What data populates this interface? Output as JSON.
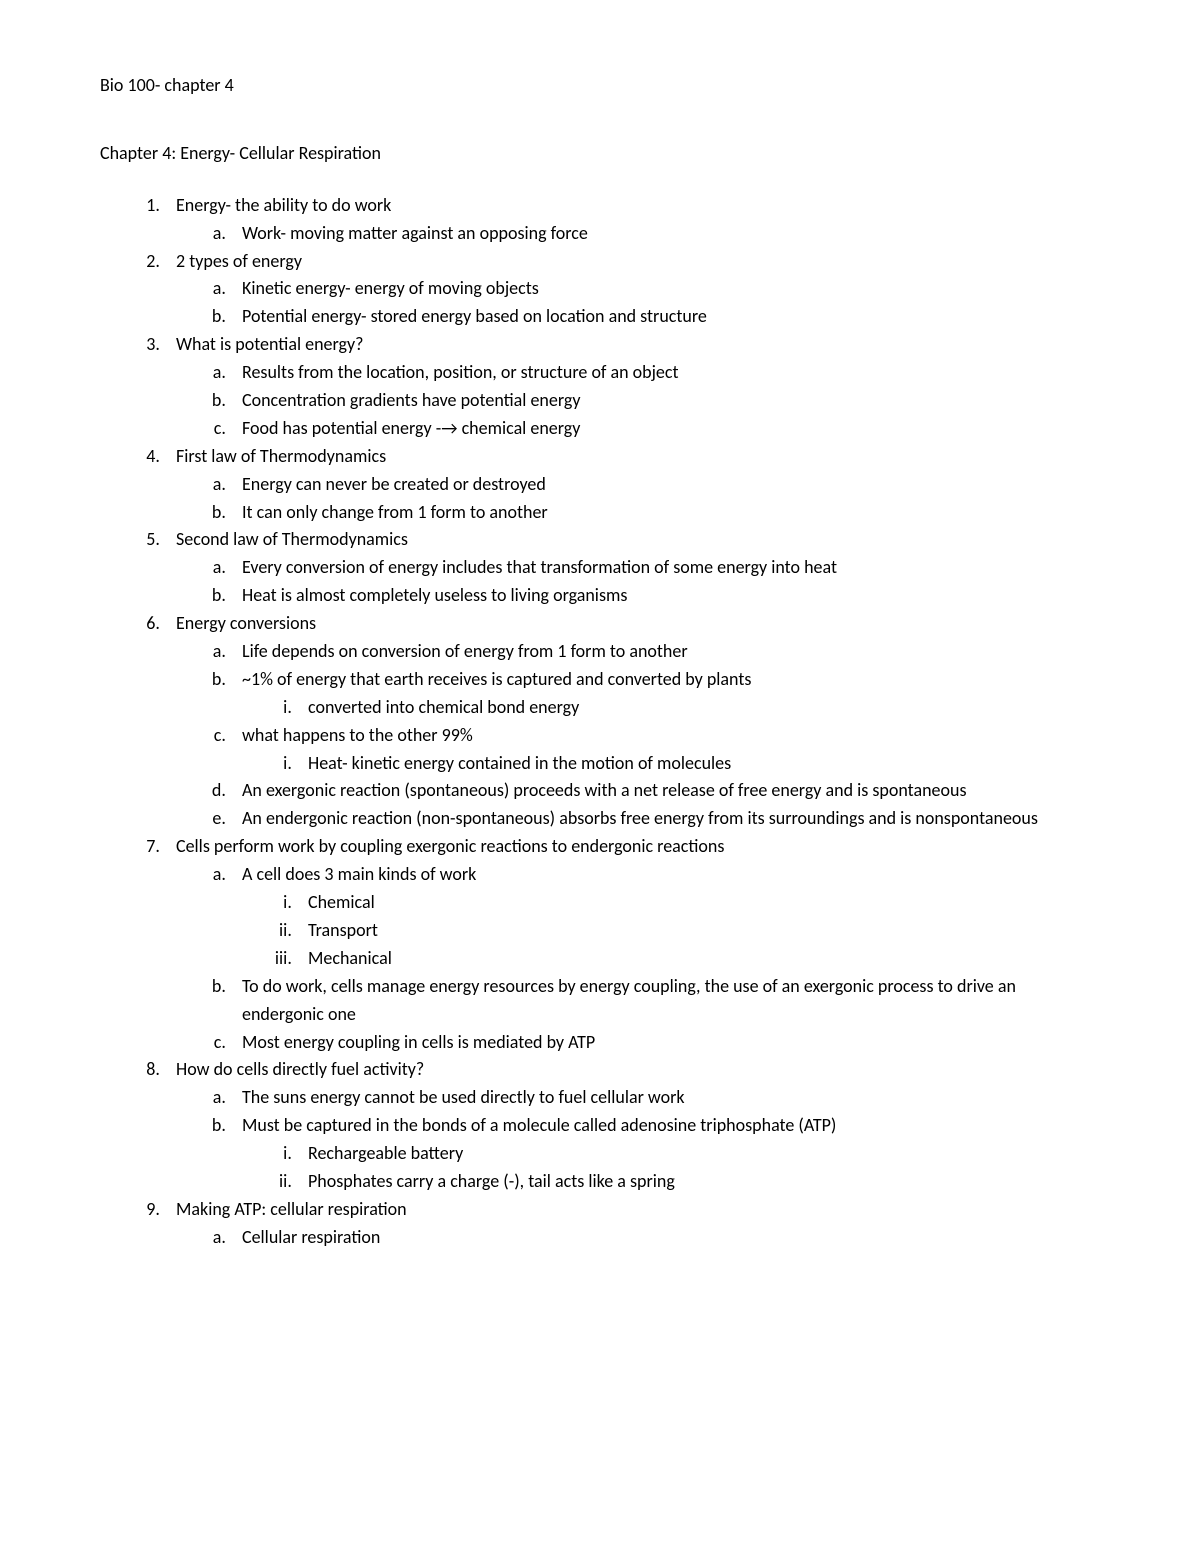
{
  "header": "Bio 100- chapter 4",
  "title": "Chapter 4: Energy- Cellular Respiration",
  "outline": [
    {
      "text": "Energy- the ability to do work",
      "children": [
        {
          "text": "Work- moving matter against an opposing force"
        }
      ]
    },
    {
      "text": "2 types of energy",
      "children": [
        {
          "text": "Kinetic energy- energy of moving objects"
        },
        {
          "text": "Potential energy- stored energy based on location and structure"
        }
      ]
    },
    {
      "text": "What is potential energy?",
      "children": [
        {
          "text": "Results from the location, position, or structure of an object"
        },
        {
          "text": "Concentration gradients have potential energy"
        },
        {
          "text": "Food has potential energy -→ chemical energy"
        }
      ]
    },
    {
      "text": "First law of Thermodynamics",
      "children": [
        {
          "text": "Energy can never be created or destroyed"
        },
        {
          "text": "It can only change from 1 form to another"
        }
      ]
    },
    {
      "text": "Second law of Thermodynamics",
      "children": [
        {
          "text": "Every conversion of energy includes that transformation of some energy into heat"
        },
        {
          "text": "Heat is almost completely useless to living organisms"
        }
      ]
    },
    {
      "text": "Energy conversions",
      "children": [
        {
          "text": "Life depends on conversion of energy from 1 form to another"
        },
        {
          "text": "~1% of energy that earth receives is captured and converted by plants",
          "children": [
            {
              "text": "converted into chemical bond energy"
            }
          ]
        },
        {
          "text": "what happens to the other 99%",
          "children": [
            {
              "text": "Heat- kinetic energy contained in the motion of molecules"
            }
          ]
        },
        {
          "text": "An exergonic reaction (spontaneous) proceeds with a net release of free energy and is spontaneous"
        },
        {
          "text": "An endergonic reaction (non-spontaneous) absorbs free energy from its surroundings and is nonspontaneous"
        }
      ]
    },
    {
      "text": "Cells perform work by coupling exergonic reactions to endergonic reactions",
      "children": [
        {
          "text": "A cell does 3 main kinds of work",
          "children": [
            {
              "text": "Chemical"
            },
            {
              "text": "Transport"
            },
            {
              "text": "Mechanical"
            }
          ]
        },
        {
          "text": "To do work, cells manage energy resources by energy coupling, the use of an exergonic process to drive an endergonic one"
        },
        {
          "text": "Most energy coupling in cells is mediated by ATP"
        }
      ]
    },
    {
      "text": "How do cells directly fuel activity?",
      "children": [
        {
          "text": "The suns energy cannot be used directly to fuel cellular work"
        },
        {
          "text": "Must be captured in the bonds of a molecule called adenosine triphosphate (ATP)",
          "children": [
            {
              "text": "Rechargeable battery"
            },
            {
              "text": "Phosphates carry a charge (-), tail acts like a spring"
            }
          ]
        }
      ]
    },
    {
      "text": "Making ATP: cellular respiration",
      "children": [
        {
          "text": "Cellular respiration"
        }
      ]
    }
  ]
}
